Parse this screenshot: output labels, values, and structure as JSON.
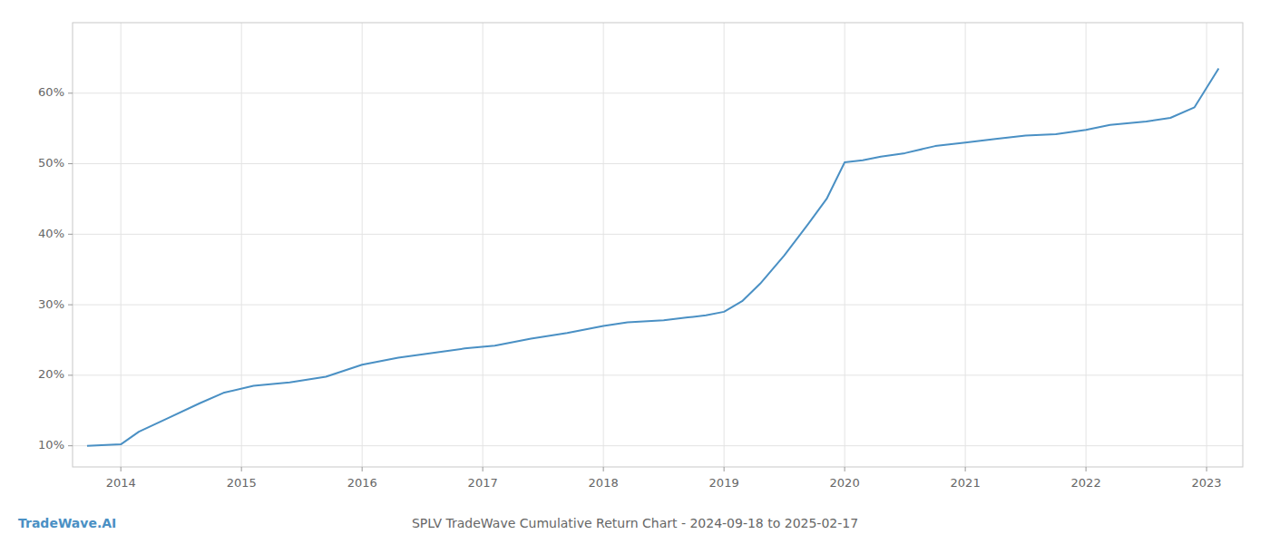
{
  "chart_data": {
    "type": "line",
    "title": "SPLV TradeWave Cumulative Return Chart - 2024-09-18 to 2025-02-17",
    "annotations": [
      "TradeWave.AI"
    ],
    "color": "#4a90c4",
    "x": [
      2013.72,
      2014.0,
      2014.15,
      2014.4,
      2014.65,
      2014.85,
      2015.1,
      2015.4,
      2015.7,
      2016.0,
      2016.3,
      2016.6,
      2016.85,
      2017.1,
      2017.4,
      2017.7,
      2018.0,
      2018.2,
      2018.5,
      2018.7,
      2018.85,
      2019.0,
      2019.15,
      2019.3,
      2019.5,
      2019.7,
      2019.85,
      2020.0,
      2020.15,
      2020.3,
      2020.5,
      2020.75,
      2021.0,
      2021.25,
      2021.5,
      2021.75,
      2022.0,
      2022.2,
      2022.5,
      2022.7,
      2022.9,
      2023.1
    ],
    "values": [
      10.0,
      10.2,
      12.0,
      14.0,
      16.0,
      17.5,
      18.5,
      19.0,
      19.8,
      21.5,
      22.5,
      23.2,
      23.8,
      24.2,
      25.2,
      26.0,
      27.0,
      27.5,
      27.8,
      28.2,
      28.5,
      29.0,
      30.5,
      33.0,
      37.0,
      41.5,
      45.0,
      50.2,
      50.5,
      51.0,
      51.5,
      52.5,
      53.0,
      53.5,
      54.0,
      54.2,
      54.8,
      55.5,
      56.0,
      56.5,
      58.0,
      63.5
    ],
    "xlim": [
      2013.6,
      2023.3
    ],
    "ylim": [
      7,
      70
    ],
    "xticks": [
      2014,
      2015,
      2016,
      2017,
      2018,
      2019,
      2020,
      2021,
      2022,
      2023
    ],
    "yticks": [
      {
        "value": 10,
        "label": "10%"
      },
      {
        "value": 20,
        "label": "20%"
      },
      {
        "value": 30,
        "label": "30%"
      },
      {
        "value": 40,
        "label": "40%"
      },
      {
        "value": 50,
        "label": "50%"
      },
      {
        "value": 60,
        "label": "60%"
      }
    ],
    "grid": true
  }
}
